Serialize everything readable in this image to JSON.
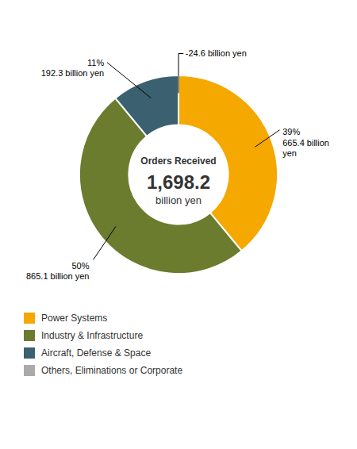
{
  "chart_data": {
    "type": "pie",
    "categories": [
      "Power Systems",
      "Industry & Infrastructure",
      "Aircraft, Defense & Space",
      "Others, Eliminations or Corporate"
    ],
    "values": [
      39,
      50,
      11,
      0
    ],
    "colors": [
      "#F5A800",
      "#6B7C2E",
      "#3B6070",
      "#AAAAAA"
    ],
    "annotations": [
      "Orders Received",
      "1,698.2",
      "billion yen",
      "39%\n665.4 billion\nyen",
      "50%\n865.1 billion yen",
      "11%\n192.3 billion yen",
      "-24.6 billion yen"
    ],
    "legend": "bottom"
  }
}
